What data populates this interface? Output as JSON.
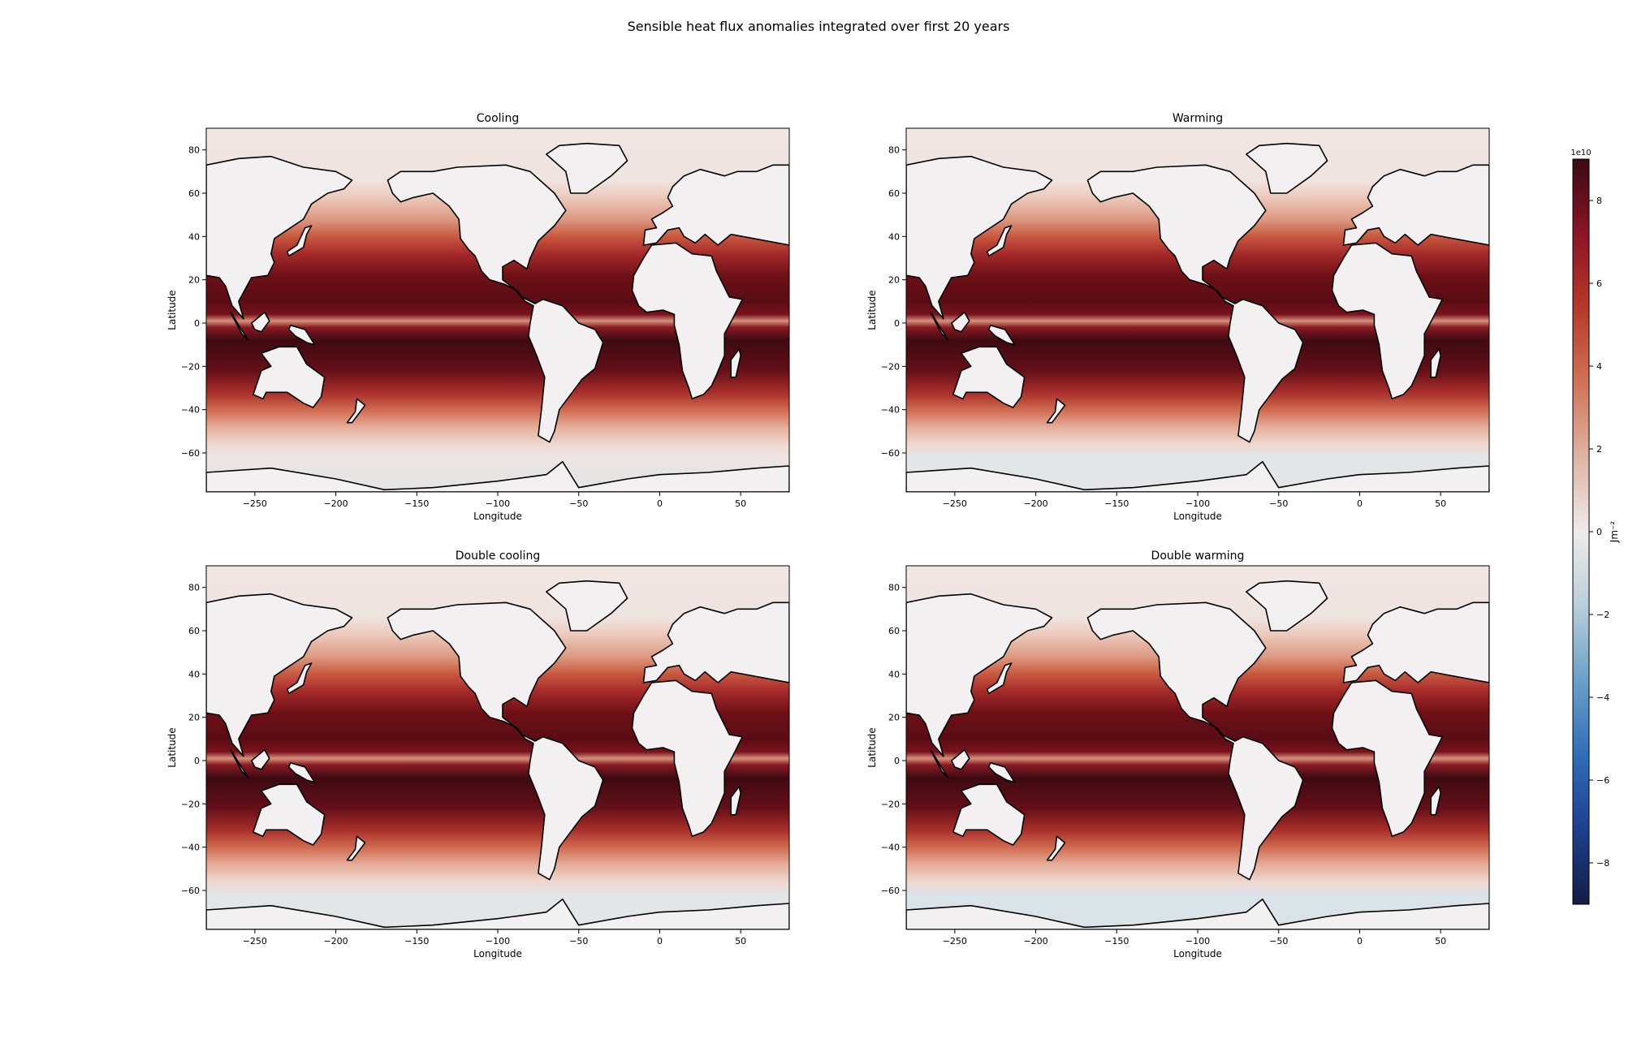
{
  "figure": {
    "suptitle": "Sensible heat flux anomalies integrated over first 20 years"
  },
  "chart_data": [
    {
      "type": "heatmap",
      "title": "Cooling",
      "xlabel": "Longitude",
      "ylabel": "Latitude",
      "xlim": [
        -280,
        80
      ],
      "ylim": [
        -78,
        90
      ],
      "xticks": [
        -250,
        -200,
        -150,
        -100,
        -50,
        0,
        50
      ],
      "yticks": [
        -60,
        -40,
        -20,
        0,
        20,
        40,
        60,
        80
      ],
      "xtick_labels": [
        "−250",
        "−200",
        "−150",
        "−100",
        "−50",
        "0",
        "50"
      ],
      "ytick_labels": [
        "−60",
        "−40",
        "−20",
        "0",
        "20",
        "40",
        "60",
        "80"
      ],
      "field": "sensible heat flux anomaly (Jm⁻²)",
      "land_mask": "white with black coastlines",
      "southern_ocean_anomaly": "near zero to slightly negative"
    },
    {
      "type": "heatmap",
      "title": "Warming",
      "xlabel": "Longitude",
      "ylabel": "Latitude",
      "xlim": [
        -280,
        80
      ],
      "ylim": [
        -78,
        90
      ],
      "xticks": [
        -250,
        -200,
        -150,
        -100,
        -50,
        0,
        50
      ],
      "yticks": [
        -60,
        -40,
        -20,
        0,
        20,
        40,
        60,
        80
      ],
      "xtick_labels": [
        "−250",
        "−200",
        "−150",
        "−100",
        "−50",
        "0",
        "50"
      ],
      "ytick_labels": [
        "−60",
        "−40",
        "−20",
        "0",
        "20",
        "40",
        "60",
        "80"
      ],
      "field": "sensible heat flux anomaly (Jm⁻²)",
      "land_mask": "white with black coastlines",
      "southern_ocean_anomaly": "slightly negative"
    },
    {
      "type": "heatmap",
      "title": "Double cooling",
      "xlabel": "Longitude",
      "ylabel": "Latitude",
      "xlim": [
        -280,
        80
      ],
      "ylim": [
        -78,
        90
      ],
      "xticks": [
        -250,
        -200,
        -150,
        -100,
        -50,
        0,
        50
      ],
      "yticks": [
        -60,
        -40,
        -20,
        0,
        20,
        40,
        60,
        80
      ],
      "xtick_labels": [
        "−250",
        "−200",
        "−150",
        "−100",
        "−50",
        "0",
        "50"
      ],
      "ytick_labels": [
        "−60",
        "−40",
        "−20",
        "0",
        "20",
        "40",
        "60",
        "80"
      ],
      "field": "sensible heat flux anomaly (Jm⁻²)",
      "land_mask": "white with black coastlines",
      "southern_ocean_anomaly": "slightly negative"
    },
    {
      "type": "heatmap",
      "title": "Double warming",
      "xlabel": "Longitude",
      "ylabel": "Latitude",
      "xlim": [
        -280,
        80
      ],
      "ylim": [
        -78,
        90
      ],
      "xticks": [
        -250,
        -200,
        -150,
        -100,
        -50,
        0,
        50
      ],
      "yticks": [
        -60,
        -40,
        -20,
        0,
        20,
        40,
        60,
        80
      ],
      "xtick_labels": [
        "−250",
        "−200",
        "−150",
        "−100",
        "−50",
        "0",
        "50"
      ],
      "ytick_labels": [
        "−60",
        "−40",
        "−20",
        "0",
        "20",
        "40",
        "60",
        "80"
      ],
      "field": "sensible heat flux anomaly (Jm⁻²)",
      "land_mask": "white with black coastlines",
      "southern_ocean_anomaly": "negative"
    }
  ],
  "colorbar": {
    "label": "Jm⁻²",
    "multiplier": "1e10",
    "range": [
      -9,
      9
    ],
    "ticks": [
      -8,
      -6,
      -4,
      -2,
      0,
      2,
      4,
      6,
      8
    ],
    "tick_labels": [
      "−8",
      "−6",
      "−4",
      "−2",
      "0",
      "2",
      "4",
      "6",
      "8"
    ],
    "colors": [
      "#141d43",
      "#1c3f8e",
      "#2f6eb8",
      "#6aa0c8",
      "#b9cfd9",
      "#efebea",
      "#e0b4a3",
      "#cf7356",
      "#b8382a",
      "#8a1525",
      "#3a0a12"
    ]
  }
}
